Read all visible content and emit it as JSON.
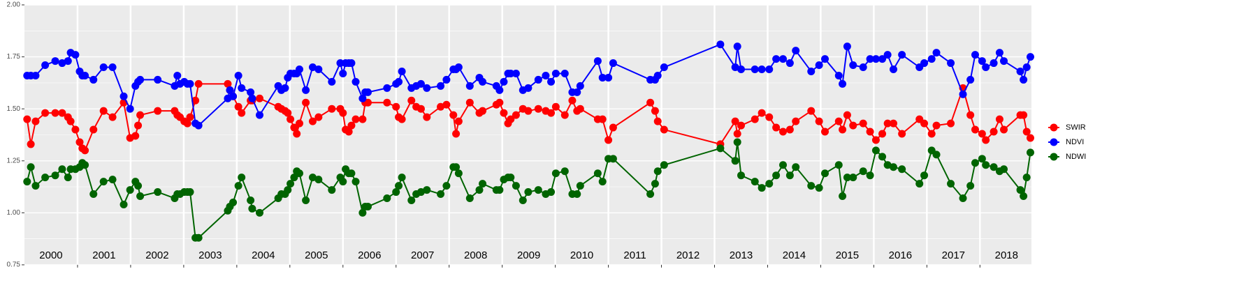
{
  "chart_data": {
    "type": "line",
    "x": [
      2000.05,
      2000.12,
      2000.21,
      2000.39,
      2000.58,
      2000.71,
      2000.82,
      2000.87,
      2000.96,
      2001.04,
      2001.09,
      2001.14,
      2001.3,
      2001.49,
      2001.66,
      2001.87,
      2001.99,
      2002.09,
      2002.14,
      2002.18,
      2002.51,
      2002.83,
      2002.88,
      2002.93,
      2003.01,
      2003.07,
      2003.12,
      2003.22,
      2003.28,
      2003.83,
      2003.87,
      2003.93,
      2004.03,
      2004.09,
      2004.26,
      2004.29,
      2004.43,
      2004.78,
      2004.84,
      2004.91,
      2004.96,
      2005.01,
      2005.08,
      2005.13,
      2005.18,
      2005.3,
      2005.43,
      2005.54,
      2005.79,
      2005.95,
      2006,
      2006.05,
      2006.11,
      2006.16,
      2006.24,
      2006.37,
      2006.42,
      2006.47,
      2006.83,
      2007,
      2007.05,
      2007.11,
      2007.29,
      2007.38,
      2007.47,
      2007.58,
      2007.84,
      2007.95,
      2008.08,
      2008.13,
      2008.18,
      2008.39,
      2008.57,
      2008.63,
      2008.89,
      2008.95,
      2009.03,
      2009.11,
      2009.16,
      2009.26,
      2009.39,
      2009.49,
      2009.68,
      2009.82,
      2009.92,
      2010.01,
      2010.18,
      2010.32,
      2010.41,
      2010.47,
      2010.8,
      2010.89,
      2011,
      2011.09,
      2011.79,
      2011.88,
      2011.93,
      2012.05,
      2013.11,
      2013.39,
      2013.43,
      2013.5,
      2013.76,
      2013.89,
      2014.03,
      2014.16,
      2014.29,
      2014.42,
      2014.53,
      2014.82,
      2014.97,
      2015.08,
      2015.34,
      2015.41,
      2015.5,
      2015.61,
      2015.8,
      2015.93,
      2016.04,
      2016.16,
      2016.26,
      2016.37,
      2016.53,
      2016.86,
      2016.95,
      2017.09,
      2017.18,
      2017.45,
      2017.68,
      2017.82,
      2017.91,
      2018.04,
      2018.11,
      2018.26,
      2018.37,
      2018.45,
      2018.76,
      2018.82,
      2018.88,
      2018.95
    ],
    "series": [
      {
        "name": "SWIR",
        "color": "#ff0000",
        "values": [
          1.45,
          1.33,
          1.44,
          1.48,
          1.48,
          1.48,
          1.46,
          1.44,
          1.4,
          1.34,
          1.31,
          1.3,
          1.4,
          1.49,
          1.46,
          1.53,
          1.36,
          1.37,
          1.42,
          1.47,
          1.49,
          1.49,
          1.47,
          1.46,
          1.44,
          1.43,
          1.46,
          1.54,
          1.62,
          1.62,
          1.59,
          1.56,
          1.51,
          1.48,
          1.54,
          1.54,
          1.55,
          1.51,
          1.5,
          1.49,
          1.48,
          1.45,
          1.41,
          1.38,
          1.43,
          1.53,
          1.44,
          1.46,
          1.5,
          1.5,
          1.48,
          1.4,
          1.39,
          1.42,
          1.45,
          1.45,
          1.53,
          1.53,
          1.53,
          1.51,
          1.46,
          1.45,
          1.54,
          1.51,
          1.5,
          1.46,
          1.51,
          1.52,
          1.47,
          1.38,
          1.44,
          1.53,
          1.48,
          1.49,
          1.52,
          1.53,
          1.48,
          1.43,
          1.45,
          1.47,
          1.5,
          1.49,
          1.5,
          1.49,
          1.48,
          1.51,
          1.47,
          1.54,
          1.49,
          1.5,
          1.45,
          1.45,
          1.35,
          1.41,
          1.53,
          1.49,
          1.44,
          1.4,
          1.33,
          1.44,
          1.38,
          1.42,
          1.45,
          1.48,
          1.46,
          1.41,
          1.39,
          1.4,
          1.44,
          1.49,
          1.44,
          1.39,
          1.44,
          1.4,
          1.47,
          1.42,
          1.43,
          1.39,
          1.35,
          1.38,
          1.43,
          1.43,
          1.38,
          1.45,
          1.43,
          1.38,
          1.42,
          1.43,
          1.6,
          1.47,
          1.4,
          1.38,
          1.35,
          1.39,
          1.45,
          1.4,
          1.47,
          1.47,
          1.39,
          1.36
        ]
      },
      {
        "name": "NDVI",
        "color": "#0000ff",
        "values": [
          1.66,
          1.66,
          1.66,
          1.71,
          1.73,
          1.72,
          1.73,
          1.77,
          1.76,
          1.68,
          1.66,
          1.66,
          1.64,
          1.7,
          1.7,
          1.56,
          1.5,
          1.61,
          1.63,
          1.64,
          1.64,
          1.61,
          1.66,
          1.62,
          1.63,
          1.62,
          1.62,
          1.43,
          1.42,
          1.55,
          1.59,
          1.56,
          1.66,
          1.6,
          1.58,
          1.55,
          1.47,
          1.61,
          1.59,
          1.6,
          1.65,
          1.67,
          1.67,
          1.67,
          1.69,
          1.59,
          1.7,
          1.69,
          1.63,
          1.72,
          1.67,
          1.72,
          1.72,
          1.72,
          1.63,
          1.55,
          1.58,
          1.58,
          1.6,
          1.62,
          1.63,
          1.68,
          1.6,
          1.61,
          1.62,
          1.6,
          1.61,
          1.64,
          1.69,
          1.69,
          1.7,
          1.61,
          1.65,
          1.63,
          1.61,
          1.59,
          1.63,
          1.67,
          1.67,
          1.67,
          1.59,
          1.6,
          1.64,
          1.66,
          1.63,
          1.67,
          1.67,
          1.58,
          1.58,
          1.61,
          1.73,
          1.65,
          1.65,
          1.72,
          1.64,
          1.64,
          1.66,
          1.7,
          1.81,
          1.7,
          1.8,
          1.69,
          1.69,
          1.69,
          1.69,
          1.74,
          1.74,
          1.72,
          1.78,
          1.68,
          1.71,
          1.74,
          1.66,
          1.62,
          1.8,
          1.71,
          1.7,
          1.74,
          1.74,
          1.74,
          1.76,
          1.69,
          1.76,
          1.7,
          1.72,
          1.74,
          1.77,
          1.72,
          1.57,
          1.64,
          1.76,
          1.73,
          1.7,
          1.72,
          1.77,
          1.73,
          1.68,
          1.64,
          1.7,
          1.75
        ]
      },
      {
        "name": "NDWI",
        "color": "#006400",
        "values": [
          1.15,
          1.22,
          1.13,
          1.17,
          1.18,
          1.21,
          1.17,
          1.21,
          1.21,
          1.22,
          1.24,
          1.23,
          1.09,
          1.15,
          1.16,
          1.04,
          1.11,
          1.15,
          1.13,
          1.08,
          1.1,
          1.07,
          1.09,
          1.09,
          1.1,
          1.1,
          1.1,
          0.88,
          0.88,
          1.01,
          1.03,
          1.05,
          1.13,
          1.17,
          1.06,
          1.02,
          1.0,
          1.07,
          1.09,
          1.09,
          1.11,
          1.14,
          1.17,
          1.2,
          1.19,
          1.06,
          1.17,
          1.16,
          1.11,
          1.17,
          1.15,
          1.21,
          1.19,
          1.19,
          1.15,
          1.0,
          1.03,
          1.03,
          1.07,
          1.1,
          1.13,
          1.17,
          1.06,
          1.09,
          1.1,
          1.11,
          1.09,
          1.13,
          1.22,
          1.22,
          1.19,
          1.07,
          1.11,
          1.14,
          1.11,
          1.11,
          1.16,
          1.17,
          1.17,
          1.13,
          1.06,
          1.1,
          1.11,
          1.09,
          1.1,
          1.19,
          1.2,
          1.09,
          1.09,
          1.13,
          1.19,
          1.15,
          1.26,
          1.26,
          1.09,
          1.14,
          1.2,
          1.23,
          1.31,
          1.25,
          1.34,
          1.18,
          1.15,
          1.12,
          1.14,
          1.18,
          1.23,
          1.18,
          1.22,
          1.13,
          1.12,
          1.19,
          1.23,
          1.08,
          1.17,
          1.17,
          1.2,
          1.18,
          1.3,
          1.27,
          1.23,
          1.22,
          1.21,
          1.14,
          1.18,
          1.3,
          1.28,
          1.14,
          1.07,
          1.13,
          1.24,
          1.26,
          1.23,
          1.22,
          1.2,
          1.21,
          1.11,
          1.08,
          1.17,
          1.29
        ]
      }
    ],
    "xlim": [
      2000,
      2018.97
    ],
    "xticks": [
      {
        "value": 2000.5,
        "label": "2000"
      },
      {
        "value": 2001.5,
        "label": "2001"
      },
      {
        "value": 2002.5,
        "label": "2002"
      },
      {
        "value": 2003.5,
        "label": "2003"
      },
      {
        "value": 2004.5,
        "label": "2004"
      },
      {
        "value": 2005.5,
        "label": "2005"
      },
      {
        "value": 2006.5,
        "label": "2006"
      },
      {
        "value": 2007.5,
        "label": "2007"
      },
      {
        "value": 2008.5,
        "label": "2008"
      },
      {
        "value": 2009.5,
        "label": "2009"
      },
      {
        "value": 2010.5,
        "label": "2010"
      },
      {
        "value": 2011.5,
        "label": "2011"
      },
      {
        "value": 2012.5,
        "label": "2012"
      },
      {
        "value": 2013.5,
        "label": "2013"
      },
      {
        "value": 2014.5,
        "label": "2014"
      },
      {
        "value": 2015.5,
        "label": "2015"
      },
      {
        "value": 2016.5,
        "label": "2016"
      },
      {
        "value": 2017.5,
        "label": "2017"
      },
      {
        "value": 2018.5,
        "label": "2018"
      }
    ],
    "ylim": [
      0.75,
      2.0
    ],
    "yticks": [
      {
        "value": 0.75,
        "label": "0.75"
      },
      {
        "value": 1,
        "label": "1.00"
      },
      {
        "value": 1.25,
        "label": "1.25"
      },
      {
        "value": 1.5,
        "label": "1.50"
      },
      {
        "value": 1.75,
        "label": "1.75"
      },
      {
        "value": 2,
        "label": "2.00"
      }
    ],
    "grid": true
  }
}
